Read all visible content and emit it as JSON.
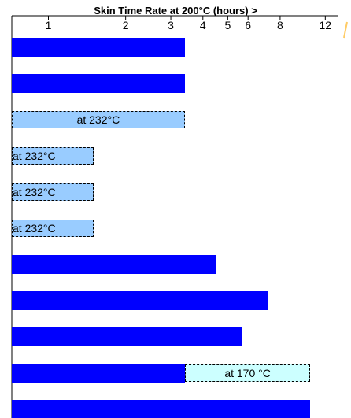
{
  "chart_data": {
    "type": "bar",
    "orientation": "horizontal",
    "title": "Skin Time Rate at 200°C (hours) >",
    "xlabel": "",
    "ylabel": "",
    "x_scale": "log",
    "x_ticks": [
      "1",
      "2",
      "3",
      "4",
      "5",
      "6",
      "8",
      "12"
    ],
    "x_tick_values": [
      1,
      2,
      3,
      4,
      5,
      6,
      8,
      12
    ],
    "xlim": [
      0.72,
      13.5
    ],
    "grid": false,
    "legend": "none",
    "colors": {
      "bar": "#0000ff",
      "ext_232": "#99ccff",
      "ext_170": "#ccffff",
      "axis": "#000000",
      "accent_line": "#ffcc66"
    },
    "rows": [
      {
        "value": 3.4,
        "segments": []
      },
      {
        "value": 3.4,
        "segments": []
      },
      {
        "value": 0,
        "segments": [
          {
            "from": 0.72,
            "to": 3.4,
            "style": "ext_232",
            "label": "at 232°C",
            "label_align": "center"
          }
        ]
      },
      {
        "value": 0,
        "segments": [
          {
            "from": 0.72,
            "to": 1.5,
            "style": "ext_232",
            "label": "at 232°C",
            "label_align": "left"
          }
        ]
      },
      {
        "value": 0,
        "segments": [
          {
            "from": 0.72,
            "to": 1.5,
            "style": "ext_232",
            "label": "at 232°C",
            "label_align": "left"
          }
        ]
      },
      {
        "value": 0,
        "segments": [
          {
            "from": 0.72,
            "to": 1.5,
            "style": "ext_232",
            "label": "at 232°C",
            "label_align": "left"
          }
        ]
      },
      {
        "value": 4.5,
        "segments": []
      },
      {
        "value": 7.2,
        "segments": []
      },
      {
        "value": 5.7,
        "segments": []
      },
      {
        "value": 3.4,
        "segments": [
          {
            "from": 3.4,
            "to": 10.5,
            "style": "ext_170",
            "label": "at 170 °C",
            "label_align": "center"
          }
        ]
      },
      {
        "value": 10.5,
        "segments": []
      }
    ]
  }
}
